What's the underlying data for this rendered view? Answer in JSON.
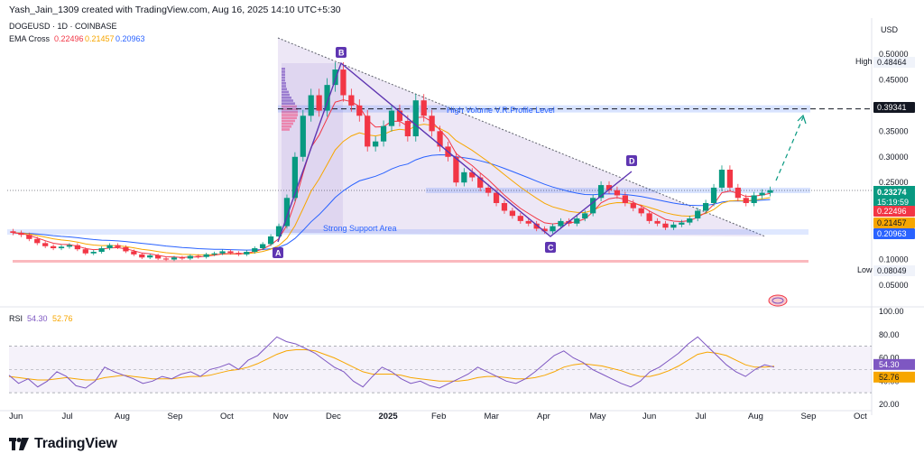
{
  "header": {
    "credit": "Yash_Jain_1309 created with TradingView.com, Aug 16, 2025 14:10 UTC+5:30",
    "symbol": "DOGEUSD · 1D · COINBASE",
    "ema_label": "EMA Cross",
    "ema_values": [
      "0.22496",
      "0.21457",
      "0.20963"
    ]
  },
  "currency": "USD",
  "price_axis": {
    "ticks": [
      "0.50000",
      "0.45000",
      "0.40000",
      "0.35000",
      "0.30000",
      "0.25000",
      "0.15000",
      "0.10000",
      "0.05000"
    ],
    "tick_values": [
      0.5,
      0.45,
      0.4,
      0.35,
      0.3,
      0.25,
      0.15,
      0.1,
      0.05
    ],
    "high_label": "High",
    "high_value": "0.48464",
    "low_label": "Low",
    "low_value": "0.08049",
    "level_value": "0.39341",
    "current_price": "0.23274",
    "countdown": "15:19:59",
    "ema_badges": [
      "0.22496",
      "0.21457",
      "0.20963"
    ]
  },
  "rsi": {
    "label": "RSI",
    "value1": "54.30",
    "value2": "52.76",
    "ticks": [
      "100.00",
      "80.00",
      "60.00",
      "40.00",
      "20.00"
    ]
  },
  "time_axis": [
    "Jun",
    "Jul",
    "Aug",
    "Sep",
    "Oct",
    "Nov",
    "Dec",
    "2025",
    "Feb",
    "Mar",
    "Apr",
    "May",
    "Jun",
    "Jul",
    "Aug",
    "Sep",
    "Oct"
  ],
  "annotations": {
    "hvp": "High Volume V.R.Profile Level",
    "support": "Strong Support Area",
    "points": [
      "A",
      "B",
      "C",
      "D"
    ]
  },
  "colors": {
    "ema_fast": "#f23645",
    "ema_mid": "#f7a600",
    "ema_slow": "#2962ff",
    "up": "#089981",
    "down": "#f23645",
    "pattern": "#7e57c2"
  },
  "footer": {
    "brand": "TradingView"
  },
  "chart_data": {
    "type": "candlestick",
    "period": "Jun 2024 – Aug 2025",
    "price_series_approx": [
      [
        0.155,
        0.152
      ],
      [
        0.152,
        0.148
      ],
      [
        0.148,
        0.14
      ],
      [
        0.14,
        0.132
      ],
      [
        0.132,
        0.126
      ],
      [
        0.126,
        0.122
      ],
      [
        0.122,
        0.125
      ],
      [
        0.125,
        0.128
      ],
      [
        0.128,
        0.12
      ],
      [
        0.12,
        0.112
      ],
      [
        0.112,
        0.115
      ],
      [
        0.115,
        0.122
      ],
      [
        0.122,
        0.128
      ],
      [
        0.128,
        0.124
      ],
      [
        0.124,
        0.116
      ],
      [
        0.116,
        0.11
      ],
      [
        0.11,
        0.104
      ],
      [
        0.104,
        0.108
      ],
      [
        0.108,
        0.102
      ],
      [
        0.102,
        0.1
      ],
      [
        0.1,
        0.104
      ],
      [
        0.104,
        0.102
      ],
      [
        0.102,
        0.107
      ],
      [
        0.107,
        0.105
      ],
      [
        0.105,
        0.11
      ],
      [
        0.11,
        0.112
      ],
      [
        0.112,
        0.116
      ],
      [
        0.116,
        0.113
      ],
      [
        0.113,
        0.11
      ],
      [
        0.11,
        0.115
      ],
      [
        0.115,
        0.122
      ],
      [
        0.122,
        0.13
      ],
      [
        0.13,
        0.145
      ],
      [
        0.145,
        0.165
      ],
      [
        0.165,
        0.22
      ],
      [
        0.22,
        0.3
      ],
      [
        0.3,
        0.38
      ],
      [
        0.38,
        0.42
      ],
      [
        0.42,
        0.39
      ],
      [
        0.39,
        0.44
      ],
      [
        0.44,
        0.47
      ],
      [
        0.47,
        0.42
      ],
      [
        0.42,
        0.4
      ],
      [
        0.4,
        0.38
      ],
      [
        0.38,
        0.32
      ],
      [
        0.32,
        0.33
      ],
      [
        0.33,
        0.36
      ],
      [
        0.36,
        0.39
      ],
      [
        0.39,
        0.37
      ],
      [
        0.37,
        0.34
      ],
      [
        0.34,
        0.41
      ],
      [
        0.41,
        0.38
      ],
      [
        0.38,
        0.35
      ],
      [
        0.35,
        0.32
      ],
      [
        0.32,
        0.3
      ],
      [
        0.3,
        0.25
      ],
      [
        0.25,
        0.27
      ],
      [
        0.27,
        0.26
      ],
      [
        0.26,
        0.24
      ],
      [
        0.24,
        0.23
      ],
      [
        0.23,
        0.21
      ],
      [
        0.21,
        0.195
      ],
      [
        0.195,
        0.185
      ],
      [
        0.185,
        0.175
      ],
      [
        0.175,
        0.17
      ],
      [
        0.17,
        0.16
      ],
      [
        0.16,
        0.155
      ],
      [
        0.155,
        0.165
      ],
      [
        0.165,
        0.175
      ],
      [
        0.175,
        0.17
      ],
      [
        0.17,
        0.18
      ],
      [
        0.18,
        0.19
      ],
      [
        0.19,
        0.22
      ],
      [
        0.22,
        0.245
      ],
      [
        0.245,
        0.235
      ],
      [
        0.235,
        0.225
      ],
      [
        0.225,
        0.21
      ],
      [
        0.21,
        0.2
      ],
      [
        0.2,
        0.19
      ],
      [
        0.19,
        0.175
      ],
      [
        0.175,
        0.17
      ],
      [
        0.17,
        0.162
      ],
      [
        0.162,
        0.168
      ],
      [
        0.168,
        0.172
      ],
      [
        0.172,
        0.18
      ],
      [
        0.18,
        0.195
      ],
      [
        0.195,
        0.21
      ],
      [
        0.21,
        0.24
      ],
      [
        0.24,
        0.275
      ],
      [
        0.275,
        0.24
      ],
      [
        0.24,
        0.22
      ],
      [
        0.22,
        0.21
      ],
      [
        0.21,
        0.225
      ],
      [
        0.225,
        0.23
      ],
      [
        0.23,
        0.235
      ]
    ],
    "price_note": "candle open/close values are approximate estimates read from the chart",
    "rsi_values": [
      45,
      38,
      42,
      35,
      40,
      48,
      44,
      36,
      34,
      40,
      52,
      48,
      45,
      42,
      38,
      40,
      44,
      42,
      46,
      48,
      44,
      50,
      52,
      55,
      50,
      58,
      62,
      70,
      78,
      74,
      72,
      68,
      64,
      58,
      52,
      48,
      40,
      35,
      44,
      52,
      48,
      42,
      38,
      40,
      36,
      34,
      38,
      42,
      46,
      52,
      48,
      44,
      40,
      38,
      42,
      48,
      55,
      62,
      66,
      60,
      56,
      50,
      46,
      42,
      38,
      35,
      40,
      48,
      52,
      58,
      64,
      72,
      78,
      70,
      62,
      54,
      48,
      44,
      50,
      54,
      52
    ],
    "rsi_ma_values": [
      44,
      43,
      42,
      41,
      41,
      42,
      43,
      42,
      41,
      41,
      43,
      44,
      45,
      44,
      43,
      42,
      42,
      42,
      43,
      44,
      44,
      45,
      47,
      49,
      50,
      52,
      55,
      59,
      63,
      66,
      67,
      67,
      66,
      63,
      60,
      56,
      52,
      48,
      46,
      46,
      46,
      45,
      43,
      42,
      41,
      40,
      40,
      40,
      41,
      43,
      44,
      44,
      43,
      42,
      42,
      43,
      45,
      48,
      52,
      54,
      55,
      54,
      53,
      51,
      49,
      46,
      44,
      44,
      46,
      49,
      53,
      58,
      63,
      65,
      64,
      62,
      58,
      54,
      52,
      52,
      52.76
    ],
    "x_axis_labels": [
      "Jun",
      "Jul",
      "Aug",
      "Sep",
      "Oct",
      "Nov",
      "Dec",
      "2025",
      "Feb",
      "Mar",
      "Apr",
      "May",
      "Jun",
      "Jul",
      "Aug",
      "Sep",
      "Oct"
    ]
  }
}
